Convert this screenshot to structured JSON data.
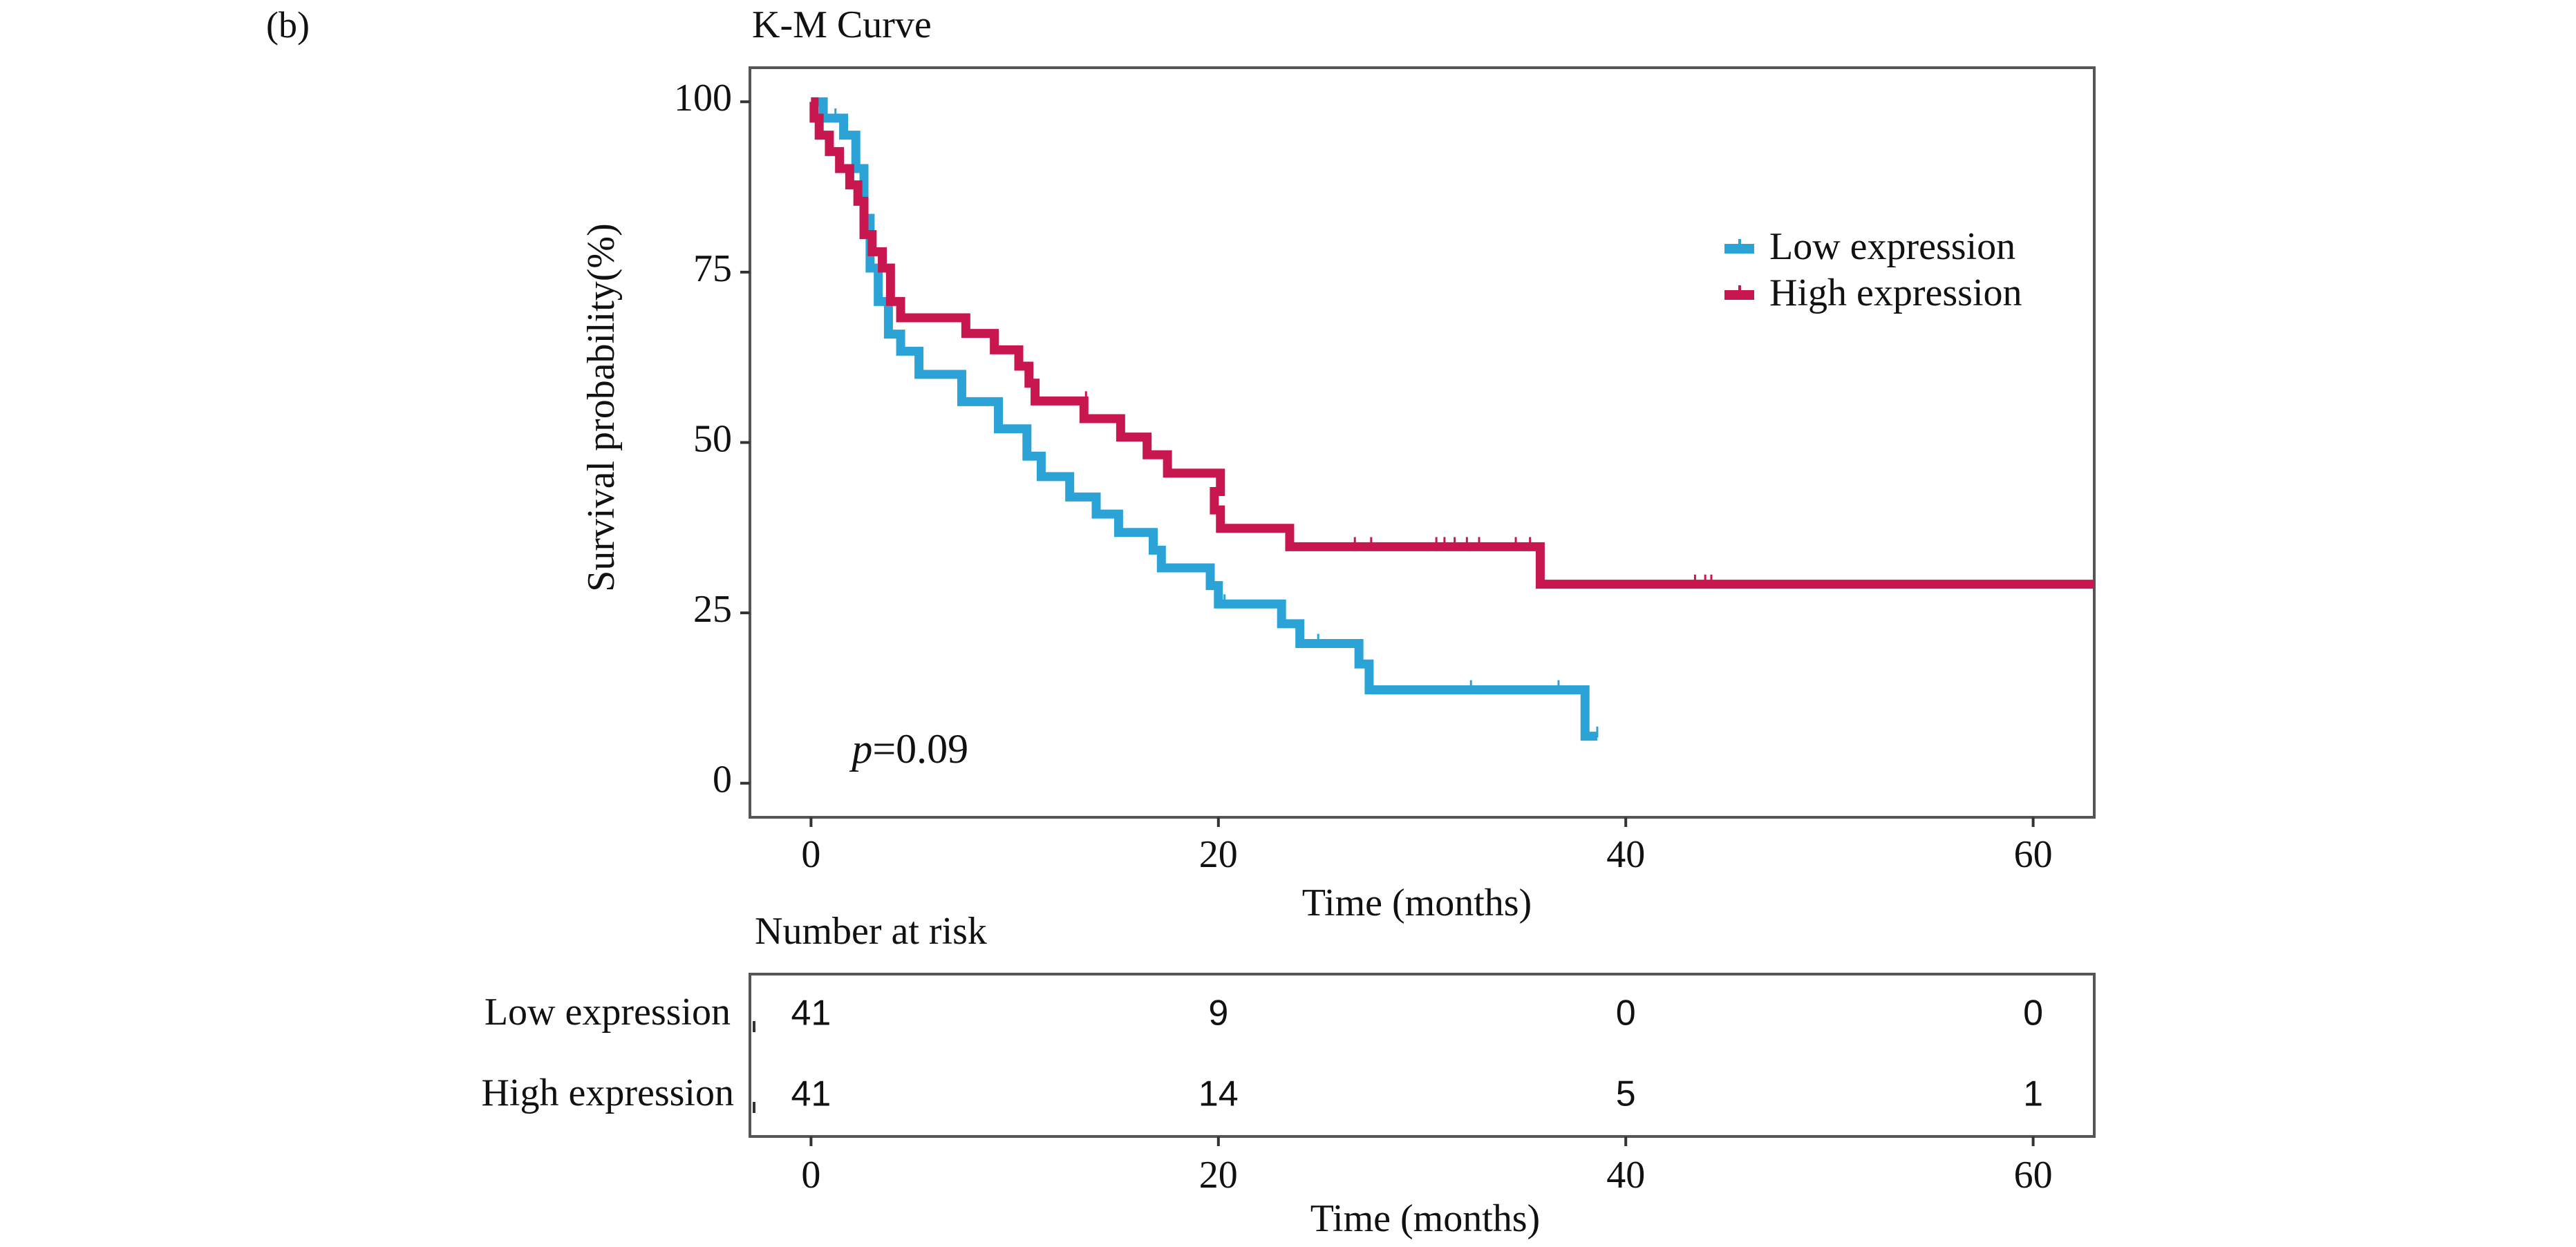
{
  "panel_label": "(b)",
  "chart_data": {
    "type": "line",
    "subtype": "kaplan-meier",
    "title": "K-M Curve",
    "xlabel": "Time (months)",
    "ylabel": "Survival probability(%)",
    "xlim": [
      -3,
      63
    ],
    "ylim": [
      -5,
      105
    ],
    "xticks": [
      0,
      20,
      40,
      60
    ],
    "yticks": [
      0,
      25,
      50,
      75,
      100
    ],
    "legend_position": "top-right",
    "annotation": {
      "prefix": "p",
      "text": "=0.09",
      "x": 2,
      "y": 3
    },
    "colors": {
      "low": "#2ba3d6",
      "high": "#c8174f",
      "axis": "#333333"
    },
    "series": [
      {
        "key": "low",
        "name": "Low expression",
        "color": "#2ba3d6",
        "steps": [
          [
            0,
            100
          ],
          [
            0.6,
            97.6
          ],
          [
            1.6,
            95.1
          ],
          [
            2.2,
            90.2
          ],
          [
            2.6,
            82.9
          ],
          [
            2.9,
            75.6
          ],
          [
            3.3,
            70.7
          ],
          [
            3.8,
            65.9
          ],
          [
            4.4,
            63.4
          ],
          [
            5.3,
            60.0
          ],
          [
            7.4,
            56.0
          ],
          [
            9.2,
            52.0
          ],
          [
            10.6,
            48.0
          ],
          [
            11.3,
            45.0
          ],
          [
            12.7,
            42.0
          ],
          [
            14.0,
            39.5
          ],
          [
            15.1,
            36.8
          ],
          [
            16.8,
            34.2
          ],
          [
            17.2,
            31.6
          ],
          [
            19.6,
            29.0
          ],
          [
            20.0,
            26.3
          ],
          [
            23.1,
            23.4
          ],
          [
            24.0,
            20.5
          ],
          [
            26.9,
            17.5
          ],
          [
            27.4,
            13.7
          ],
          [
            38.0,
            6.9
          ]
        ],
        "end": 38.6,
        "censored": [
          [
            1.2,
            97.6
          ],
          [
            20.3,
            26.3
          ],
          [
            24.9,
            20.5
          ],
          [
            32.4,
            13.7
          ],
          [
            36.7,
            13.7
          ],
          [
            38.6,
            6.9
          ]
        ]
      },
      {
        "key": "high",
        "name": "High expression",
        "color": "#c8174f",
        "steps": [
          [
            0,
            100
          ],
          [
            0.15,
            97.6
          ],
          [
            0.4,
            95.1
          ],
          [
            0.9,
            92.7
          ],
          [
            1.4,
            90.2
          ],
          [
            1.9,
            87.8
          ],
          [
            2.3,
            85.4
          ],
          [
            2.6,
            80.5
          ],
          [
            3.0,
            78.0
          ],
          [
            3.5,
            75.6
          ],
          [
            3.9,
            70.7
          ],
          [
            4.4,
            68.3
          ],
          [
            7.6,
            66.0
          ],
          [
            9.0,
            63.6
          ],
          [
            10.2,
            61.2
          ],
          [
            10.7,
            58.7
          ],
          [
            11.0,
            56.1
          ],
          [
            13.4,
            53.5
          ],
          [
            15.2,
            50.8
          ],
          [
            16.5,
            48.2
          ],
          [
            17.5,
            45.5
          ],
          [
            20.1,
            42.8
          ],
          [
            19.8,
            40.1
          ],
          [
            20.1,
            37.4
          ],
          [
            23.5,
            34.7
          ],
          [
            35.8,
            29.2
          ]
        ],
        "end": 63,
        "censored": [
          [
            0.5,
            95.1
          ],
          [
            13.5,
            56.1
          ],
          [
            26.7,
            34.7
          ],
          [
            27.5,
            34.7
          ],
          [
            30.7,
            34.7
          ],
          [
            31.1,
            34.7
          ],
          [
            31.6,
            34.7
          ],
          [
            32.2,
            34.7
          ],
          [
            32.8,
            34.7
          ],
          [
            34.6,
            34.7
          ],
          [
            35.3,
            34.7
          ],
          [
            43.4,
            29.2
          ],
          [
            43.9,
            29.2
          ],
          [
            44.2,
            29.2
          ]
        ]
      }
    ],
    "risk_table": {
      "title": "Number at risk",
      "xlabel": "Time (months)",
      "times": [
        0,
        20,
        40,
        60
      ],
      "rows": [
        {
          "label": "Low expression",
          "values": [
            41,
            9,
            0,
            0
          ]
        },
        {
          "label": "High expression",
          "values": [
            41,
            14,
            5,
            1
          ]
        }
      ]
    }
  }
}
